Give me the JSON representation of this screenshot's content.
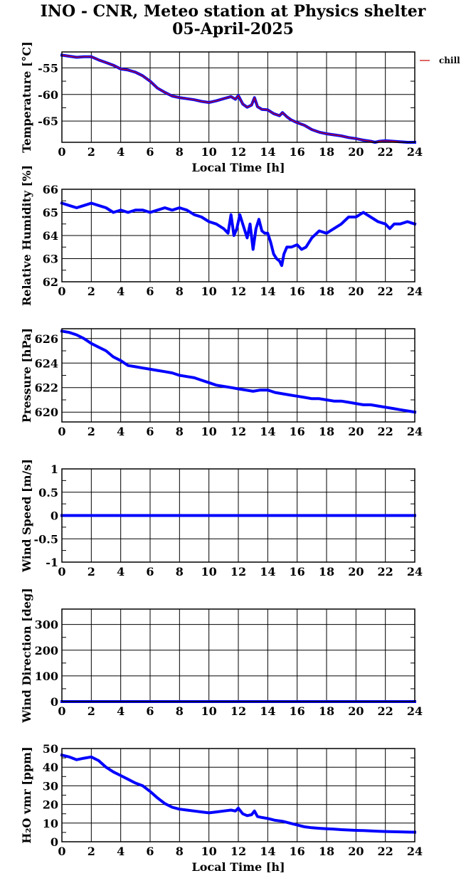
{
  "title": "INO - CNR, Meteo station at Physics shelter",
  "subtitle": "05-April-2025",
  "colors": {
    "series": "#0000ff",
    "chill": "#cc0000",
    "grid": "#000000"
  },
  "chart_data": [
    {
      "type": "line",
      "ylabel": "Temperature [°C]",
      "xlabel": "Local Time [h]",
      "xlim": [
        0,
        24
      ],
      "ylim": [
        -69,
        -52
      ],
      "yticks": [
        -55,
        -60,
        -65
      ],
      "ytick_labels": [
        "-55",
        "-60",
        "-65"
      ],
      "xticks": [
        0,
        2,
        4,
        6,
        8,
        10,
        12,
        14,
        16,
        18,
        20,
        22,
        24
      ],
      "xtick_labels": [
        "0",
        "2",
        "4",
        "6",
        "8",
        "10",
        "12",
        "14",
        "16",
        "18",
        "20",
        "22",
        "24"
      ],
      "legend": {
        "labels": [
          "chill"
        ],
        "position": "right-outside"
      },
      "series": [
        {
          "color": "#0000ff",
          "x": [
            0,
            0.5,
            1,
            1.5,
            2,
            2.5,
            3,
            3.5,
            4,
            4.5,
            5,
            5.5,
            6,
            6.5,
            7,
            7.5,
            8,
            8.5,
            9,
            9.5,
            10,
            10.5,
            11,
            11.5,
            11.8,
            12,
            12.3,
            12.6,
            12.9,
            13.1,
            13.3,
            13.6,
            14,
            14.4,
            14.8,
            15,
            15.3,
            15.6,
            16,
            16.5,
            17,
            17.5,
            18,
            18.5,
            19,
            19.5,
            20,
            20.5,
            21,
            21.3,
            21.6,
            22,
            22.5,
            23,
            23.5,
            24
          ],
          "y": [
            -52.6,
            -52.8,
            -53.0,
            -52.9,
            -52.9,
            -53.5,
            -54.0,
            -54.5,
            -55.2,
            -55.4,
            -55.8,
            -56.5,
            -57.5,
            -58.8,
            -59.6,
            -60.3,
            -60.6,
            -60.8,
            -61.0,
            -61.3,
            -61.5,
            -61.2,
            -60.8,
            -60.4,
            -60.9,
            -60.2,
            -61.8,
            -62.4,
            -62.0,
            -60.6,
            -62.3,
            -62.8,
            -62.9,
            -63.6,
            -64.0,
            -63.4,
            -64.2,
            -64.8,
            -65.3,
            -65.8,
            -66.6,
            -67.1,
            -67.4,
            -67.6,
            -67.8,
            -68.1,
            -68.3,
            -68.6,
            -68.8,
            -69.0,
            -68.8,
            -68.7,
            -68.8,
            -68.9,
            -69.0,
            -69.0
          ]
        },
        {
          "color": "#cc0000",
          "x": [
            0,
            0.5,
            1,
            1.5,
            2,
            2.5,
            3,
            3.5,
            4,
            4.5,
            5,
            5.5,
            6,
            6.5,
            7,
            7.5,
            8,
            8.5,
            9,
            9.5,
            10,
            10.5,
            11,
            11.5,
            11.8,
            12,
            12.3,
            12.6,
            12.9,
            13.1,
            13.3,
            13.6,
            14,
            14.4,
            14.8,
            15,
            15.3,
            15.6,
            16,
            16.5,
            17,
            17.5,
            18,
            18.5,
            19,
            19.5,
            20,
            20.5,
            21,
            21.3,
            21.6,
            22,
            22.5,
            23,
            23.5,
            24
          ],
          "y": [
            -52.6,
            -52.8,
            -53.0,
            -52.9,
            -52.9,
            -53.5,
            -54.0,
            -54.5,
            -55.2,
            -55.4,
            -55.8,
            -56.5,
            -57.5,
            -58.8,
            -59.6,
            -60.3,
            -60.6,
            -60.8,
            -61.0,
            -61.3,
            -61.5,
            -61.2,
            -60.8,
            -60.4,
            -60.9,
            -60.2,
            -61.8,
            -62.4,
            -62.0,
            -60.6,
            -62.3,
            -62.8,
            -62.9,
            -63.6,
            -64.0,
            -63.4,
            -64.2,
            -64.8,
            -65.3,
            -65.8,
            -66.6,
            -67.1,
            -67.4,
            -67.6,
            -67.8,
            -68.1,
            -68.3,
            -68.6,
            -68.8,
            -69.0,
            -68.8,
            -68.7,
            -68.8,
            -68.9,
            -69.0,
            -69.0
          ]
        }
      ]
    },
    {
      "type": "scatter",
      "ylabel": "Relative Humidity [%]",
      "xlim": [
        0,
        24
      ],
      "ylim": [
        62,
        66
      ],
      "yticks": [
        62,
        63,
        64,
        65,
        66
      ],
      "ytick_labels": [
        "62",
        "63",
        "64",
        "65",
        "66"
      ],
      "xticks": [
        0,
        2,
        4,
        6,
        8,
        10,
        12,
        14,
        16,
        18,
        20,
        22,
        24
      ],
      "xtick_labels": [
        "0",
        "2",
        "4",
        "6",
        "8",
        "10",
        "12",
        "14",
        "16",
        "18",
        "20",
        "22",
        "24"
      ],
      "series": [
        {
          "color": "#0000ff",
          "x": [
            0,
            0.5,
            1,
            1.5,
            2,
            2.5,
            3,
            3.5,
            4,
            4.5,
            5,
            5.5,
            6,
            6.5,
            7,
            7.5,
            8,
            8.5,
            9,
            9.5,
            10,
            10.5,
            11,
            11.3,
            11.5,
            11.7,
            11.9,
            12.1,
            12.3,
            12.6,
            12.8,
            13.0,
            13.2,
            13.4,
            13.6,
            13.8,
            14.0,
            14.2,
            14.4,
            14.6,
            14.8,
            14.95,
            15.1,
            15.3,
            15.6,
            16.0,
            16.3,
            16.6,
            17.0,
            17.5,
            18,
            18.5,
            19,
            19.5,
            20,
            20.5,
            21,
            21.5,
            22,
            22.3,
            22.6,
            23,
            23.5,
            24
          ],
          "y": [
            65.4,
            65.3,
            65.2,
            65.3,
            65.4,
            65.3,
            65.2,
            65.0,
            65.1,
            65.0,
            65.1,
            65.1,
            65.0,
            65.1,
            65.2,
            65.1,
            65.2,
            65.1,
            64.9,
            64.8,
            64.6,
            64.5,
            64.3,
            64.1,
            64.9,
            64.0,
            64.3,
            64.9,
            64.5,
            63.9,
            64.5,
            63.4,
            64.3,
            64.7,
            64.2,
            64.1,
            64.1,
            63.7,
            63.2,
            63.0,
            62.9,
            62.7,
            63.2,
            63.5,
            63.5,
            63.6,
            63.4,
            63.5,
            63.9,
            64.2,
            64.1,
            64.3,
            64.5,
            64.8,
            64.8,
            65.0,
            64.8,
            64.6,
            64.5,
            64.3,
            64.5,
            64.5,
            64.6,
            64.5
          ]
        }
      ]
    },
    {
      "type": "scatter",
      "ylabel": "Pressure [hPa]",
      "xlim": [
        0,
        24
      ],
      "ylim": [
        619.2,
        626.8
      ],
      "yticks": [
        620,
        622,
        624,
        626
      ],
      "ytick_labels": [
        "620",
        "622",
        "624",
        "626"
      ],
      "xticks": [
        0,
        2,
        4,
        6,
        8,
        10,
        12,
        14,
        16,
        18,
        20,
        22,
        24
      ],
      "xtick_labels": [
        "0",
        "2",
        "4",
        "6",
        "8",
        "10",
        "12",
        "14",
        "16",
        "18",
        "20",
        "22",
        "24"
      ],
      "series": [
        {
          "color": "#0000ff",
          "x": [
            0,
            0.5,
            1,
            1.5,
            2,
            2.5,
            3,
            3.5,
            4,
            4.5,
            5,
            5.5,
            6,
            6.5,
            7,
            7.5,
            8,
            8.5,
            9,
            9.5,
            10,
            10.5,
            11,
            11.5,
            12,
            12.5,
            13,
            13.5,
            14,
            14.5,
            15,
            15.5,
            16,
            16.5,
            17,
            17.5,
            18,
            18.5,
            19,
            19.5,
            20,
            20.5,
            21,
            21.5,
            22,
            22.5,
            23,
            23.5,
            24
          ],
          "y": [
            626.6,
            626.5,
            626.3,
            626.0,
            625.6,
            625.3,
            625.0,
            624.5,
            624.2,
            623.8,
            623.7,
            623.6,
            623.5,
            623.4,
            623.3,
            623.2,
            623.0,
            622.9,
            622.8,
            622.6,
            622.4,
            622.2,
            622.1,
            622.0,
            621.9,
            621.8,
            621.7,
            621.8,
            621.8,
            621.6,
            621.5,
            621.4,
            621.3,
            621.2,
            621.1,
            621.1,
            621.0,
            620.9,
            620.9,
            620.8,
            620.7,
            620.6,
            620.6,
            620.5,
            620.4,
            620.3,
            620.2,
            620.1,
            620.0
          ]
        }
      ]
    },
    {
      "type": "line",
      "ylabel": "Wind Speed [m/s]",
      "xlim": [
        0,
        24
      ],
      "ylim": [
        -1,
        1
      ],
      "yticks": [
        -1,
        -0.5,
        0,
        0.5,
        1
      ],
      "ytick_labels": [
        "-1",
        "-0.5",
        "0",
        "0.5",
        "1"
      ],
      "xticks": [
        0,
        2,
        4,
        6,
        8,
        10,
        12,
        14,
        16,
        18,
        20,
        22,
        24
      ],
      "xtick_labels": [
        "0",
        "2",
        "4",
        "6",
        "8",
        "10",
        "12",
        "14",
        "16",
        "18",
        "20",
        "22",
        "24"
      ],
      "series": [
        {
          "color": "#0000ff",
          "x": [
            0,
            24
          ],
          "y": [
            0,
            0
          ]
        }
      ]
    },
    {
      "type": "line",
      "ylabel": "Wind Direction [deg]",
      "xlim": [
        0,
        24
      ],
      "ylim": [
        0,
        360
      ],
      "yticks": [
        0,
        100,
        200,
        300
      ],
      "ytick_labels": [
        "0",
        "100",
        "200",
        "300"
      ],
      "xticks": [
        0,
        2,
        4,
        6,
        8,
        10,
        12,
        14,
        16,
        18,
        20,
        22,
        24
      ],
      "xtick_labels": [
        "0",
        "2",
        "4",
        "6",
        "8",
        "10",
        "12",
        "14",
        "16",
        "18",
        "20",
        "22",
        "24"
      ],
      "series": [
        {
          "color": "#0000ff",
          "x": [
            0,
            24
          ],
          "y": [
            0,
            0
          ]
        }
      ]
    },
    {
      "type": "line",
      "ylabel": "H₂O vmr [ppm]",
      "xlabel": "Local Time [h]",
      "xlim": [
        0,
        24
      ],
      "ylim": [
        0,
        50
      ],
      "yticks": [
        0,
        10,
        20,
        30,
        40,
        50
      ],
      "ytick_labels": [
        "0",
        "10",
        "20",
        "30",
        "40",
        "50"
      ],
      "xticks": [
        0,
        2,
        4,
        6,
        8,
        10,
        12,
        14,
        16,
        18,
        20,
        22,
        24
      ],
      "xtick_labels": [
        "0",
        "2",
        "4",
        "6",
        "8",
        "10",
        "12",
        "14",
        "16",
        "18",
        "20",
        "22",
        "24"
      ],
      "series": [
        {
          "color": "#0000ff",
          "x": [
            0,
            0.5,
            1,
            1.5,
            2,
            2.5,
            3,
            3.5,
            4,
            4.5,
            5,
            5.5,
            6,
            6.5,
            7,
            7.5,
            8,
            8.5,
            9,
            9.5,
            10,
            10.5,
            11,
            11.5,
            11.8,
            12,
            12.3,
            12.6,
            12.9,
            13.1,
            13.3,
            13.6,
            14,
            14.5,
            15,
            15.5,
            16,
            16.5,
            17,
            17.5,
            18,
            18.5,
            19,
            19.5,
            20,
            20.5,
            21,
            21.5,
            22,
            22.5,
            23,
            23.5,
            24
          ],
          "y": [
            46.5,
            45.5,
            44.0,
            44.8,
            45.5,
            43.5,
            40.0,
            37.5,
            35.5,
            33.5,
            31.5,
            30.0,
            27.0,
            23.5,
            20.5,
            18.5,
            17.5,
            17.0,
            16.5,
            16.0,
            15.5,
            16.0,
            16.5,
            17.0,
            16.5,
            18.0,
            15.0,
            14.0,
            14.5,
            16.5,
            13.5,
            13.0,
            12.5,
            11.5,
            11.0,
            10.0,
            9.0,
            8.0,
            7.5,
            7.2,
            7.0,
            6.8,
            6.5,
            6.3,
            6.1,
            6.0,
            5.8,
            5.6,
            5.5,
            5.4,
            5.3,
            5.2,
            5.1
          ]
        }
      ]
    }
  ]
}
